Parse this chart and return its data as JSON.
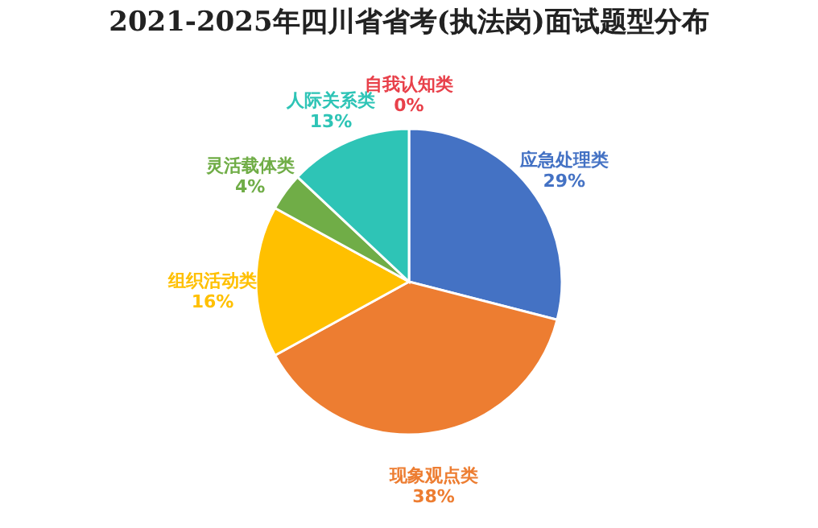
{
  "chart_data": {
    "type": "pie",
    "title": "2021-2025年四川省省考(执法岗)面试题型分布",
    "categories": [
      "自我认知类",
      "应急处理类",
      "现象观点类",
      "组织活动类",
      "灵活载体类",
      "人际关系类"
    ],
    "values": [
      0,
      29,
      38,
      16,
      4,
      13
    ],
    "value_labels": [
      "0%",
      "29%",
      "38%",
      "16%",
      "4%",
      "13%"
    ],
    "colors": [
      "#e8404a",
      "#4472c4",
      "#ed7d31",
      "#ffc000",
      "#70ad47",
      "#2ec4b6"
    ],
    "legend": false
  }
}
